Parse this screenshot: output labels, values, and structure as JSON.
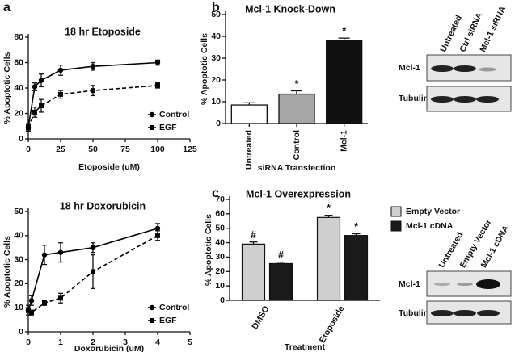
{
  "panel_labels": [
    "a",
    "b",
    "c"
  ],
  "chart_data": [
    {
      "type": "line",
      "title": "18 hr Etoposide",
      "xlabel": "Etoposide (uM)",
      "ylabel": "% Apoptotic Cells",
      "xlim": [
        0,
        125
      ],
      "xticks": [
        0,
        25,
        50,
        75,
        100,
        125
      ],
      "ylim": [
        0,
        80
      ],
      "yticks": [
        0,
        20,
        40,
        60,
        80
      ],
      "x": [
        0,
        5,
        10,
        25,
        50,
        100
      ],
      "legend": "lower right",
      "series": [
        {
          "name": "Control",
          "color": "#000000",
          "line_style": "solid",
          "marker": "circle",
          "values": [
            9,
            41,
            46,
            54,
            57,
            60
          ],
          "errors": [
            2,
            3,
            5,
            4,
            3,
            2
          ]
        },
        {
          "name": "EGF",
          "color": "#000000",
          "line_style": "dashed",
          "marker": "square",
          "values": [
            9,
            21,
            26,
            35,
            38,
            42
          ],
          "errors": [
            3,
            4,
            5,
            3,
            4,
            2
          ]
        }
      ]
    },
    {
      "type": "line",
      "title": "18 hr Doxorubicin",
      "xlabel": "Doxorubicin (uM)",
      "ylabel": "% Apoptotic Cells",
      "xlim": [
        0,
        5
      ],
      "xticks": [
        0,
        1,
        2,
        3,
        4,
        5
      ],
      "ylim": [
        0,
        50
      ],
      "yticks": [
        0,
        10,
        20,
        30,
        40,
        50
      ],
      "x": [
        0,
        0.1,
        0.5,
        1,
        2,
        4
      ],
      "legend": "lower right",
      "series": [
        {
          "name": "Control",
          "color": "#000000",
          "line_style": "solid",
          "marker": "circle",
          "values": [
            9,
            13,
            32,
            33,
            35,
            43
          ],
          "errors": [
            2,
            2,
            4,
            4,
            2,
            2
          ]
        },
        {
          "name": "EGF",
          "color": "#000000",
          "line_style": "dashed",
          "marker": "square",
          "values": [
            9,
            8,
            12,
            14,
            25,
            40
          ],
          "errors": [
            1,
            1,
            1,
            2,
            7,
            2
          ]
        }
      ]
    },
    {
      "type": "bar",
      "title": "Mcl-1 Knock-Down",
      "xlabel": "siRNA Transfection",
      "ylabel": "% Apoptotic Cells",
      "categories": [
        "Untreated",
        "Control",
        "Mcl-1"
      ],
      "values": [
        8.5,
        13.5,
        38
      ],
      "errors": [
        1,
        1.5,
        1.2
      ],
      "colors": [
        "#ffffff",
        "#a6a6a6",
        "#111111"
      ],
      "markers": [
        null,
        "*",
        "*"
      ],
      "ylim": [
        0,
        50
      ],
      "yticks": [
        0,
        10,
        20,
        30,
        40,
        50
      ]
    },
    {
      "type": "grouped_bar",
      "title": "Mcl-1 Overexpression",
      "xlabel": "Treatment",
      "ylabel": "% Apoptotic Cells",
      "categories": [
        "DMSO",
        "Etoposide"
      ],
      "legend": "upper right",
      "series": [
        {
          "name": "Empty Vector",
          "color": "#cfcfcf",
          "values": [
            39,
            57.5
          ],
          "errors": [
            1.5,
            1.5
          ],
          "markers": [
            "#",
            "*"
          ]
        },
        {
          "name": "Mcl-1 cDNA",
          "color": "#1a1a1a",
          "values": [
            25.5,
            45
          ],
          "errors": [
            1,
            1.2
          ],
          "markers": [
            "#",
            "*"
          ]
        }
      ],
      "ylim": [
        0,
        70
      ],
      "yticks": [
        0,
        10,
        20,
        30,
        40,
        50,
        60,
        70
      ]
    }
  ],
  "blots": [
    {
      "columns": [
        "Untreated",
        "Ctrl siRNA",
        "Mcl-1 siRNA"
      ],
      "rows": [
        "Mcl-1",
        "Tubulin"
      ]
    },
    {
      "columns": [
        "Untreated",
        "Empty Vector",
        "Mcl-1 cDNA"
      ],
      "rows": [
        "Mcl-1",
        "Tubulin"
      ]
    }
  ]
}
